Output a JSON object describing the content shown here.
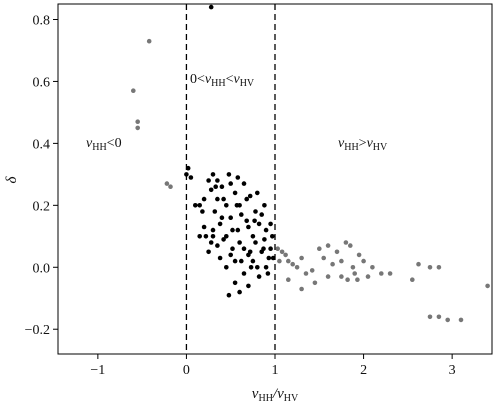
{
  "chart_data": {
    "type": "scatter",
    "title": "",
    "xlabel": {
      "main": "v",
      "sub1": "HH",
      "slash": "/v",
      "sub2": "HV"
    },
    "ylabel": "δ",
    "xlim": [
      -1.45,
      3.45
    ],
    "ylim": [
      -0.28,
      0.85
    ],
    "xticks": [
      -1,
      0,
      1,
      2,
      3
    ],
    "yticks": [
      -0.2,
      0.0,
      0.2,
      0.4,
      0.6,
      0.8
    ],
    "xtick_labels": [
      "−1",
      "0",
      "1",
      "2",
      "3"
    ],
    "ytick_labels": [
      "−0.2",
      "0.0",
      "0.2",
      "0.4",
      "0.6",
      "0.8"
    ],
    "reference_lines": [
      0,
      1
    ],
    "grid": false,
    "annotations": [
      {
        "id": "left",
        "parts": [
          "v",
          "HH",
          "<0"
        ]
      },
      {
        "id": "middle",
        "parts": [
          "0<",
          "v",
          "HH",
          "<",
          "v",
          "HV"
        ]
      },
      {
        "id": "right",
        "parts": [
          "v",
          "HH",
          ">",
          "v",
          "HV"
        ]
      }
    ],
    "series": [
      {
        "color": "#777777",
        "points": [
          [
            -0.42,
            0.73
          ],
          [
            -0.6,
            0.57
          ],
          [
            -0.55,
            0.47
          ],
          [
            -0.55,
            0.45
          ],
          [
            -0.22,
            0.27
          ],
          [
            -0.18,
            0.26
          ],
          [
            1.03,
            0.06
          ],
          [
            1.08,
            0.05
          ],
          [
            1.12,
            0.04
          ],
          [
            1.15,
            0.02
          ],
          [
            1.2,
            0.01
          ],
          [
            1.25,
            0.0
          ],
          [
            1.3,
            0.03
          ],
          [
            1.35,
            -0.02
          ],
          [
            1.42,
            -0.01
          ],
          [
            1.5,
            0.06
          ],
          [
            1.55,
            0.03
          ],
          [
            1.6,
            -0.03
          ],
          [
            1.65,
            0.01
          ],
          [
            1.7,
            0.05
          ],
          [
            1.75,
            -0.03
          ],
          [
            1.8,
            0.08
          ],
          [
            1.82,
            -0.04
          ],
          [
            1.85,
            0.07
          ],
          [
            1.9,
            -0.02
          ],
          [
            1.93,
            -0.04
          ],
          [
            1.95,
            0.04
          ],
          [
            2.0,
            0.02
          ],
          [
            2.05,
            -0.03
          ],
          [
            2.1,
            0.0
          ],
          [
            2.2,
            -0.02
          ],
          [
            2.3,
            -0.02
          ],
          [
            1.6,
            0.07
          ],
          [
            1.45,
            -0.05
          ],
          [
            1.3,
            -0.07
          ],
          [
            1.15,
            -0.04
          ],
          [
            1.05,
            0.02
          ],
          [
            1.75,
            0.02
          ],
          [
            1.88,
            0.0
          ],
          [
            2.55,
            -0.04
          ],
          [
            2.62,
            0.01
          ],
          [
            2.75,
            0.0
          ],
          [
            2.85,
            0.0
          ],
          [
            2.75,
            -0.16
          ],
          [
            2.85,
            -0.16
          ],
          [
            2.95,
            -0.17
          ],
          [
            3.1,
            -0.17
          ],
          [
            3.4,
            -0.06
          ]
        ]
      },
      {
        "color": "#000000",
        "points": [
          [
            0.28,
            0.84
          ],
          [
            0.02,
            0.32
          ],
          [
            0.0,
            0.3
          ],
          [
            0.05,
            0.29
          ],
          [
            0.15,
            0.2
          ],
          [
            0.18,
            0.18
          ],
          [
            0.2,
            0.22
          ],
          [
            0.22,
            0.1
          ],
          [
            0.25,
            0.28
          ],
          [
            0.28,
            0.25
          ],
          [
            0.3,
            0.3
          ],
          [
            0.32,
            0.18
          ],
          [
            0.35,
            0.22
          ],
          [
            0.38,
            0.14
          ],
          [
            0.4,
            0.26
          ],
          [
            0.42,
            0.09
          ],
          [
            0.45,
            0.2
          ],
          [
            0.48,
            0.3
          ],
          [
            0.5,
            0.16
          ],
          [
            0.52,
            0.06
          ],
          [
            0.55,
            0.24
          ],
          [
            0.58,
            0.12
          ],
          [
            0.6,
            0.2
          ],
          [
            0.62,
            0.02
          ],
          [
            0.65,
            0.27
          ],
          [
            0.68,
            0.15
          ],
          [
            0.7,
            0.04
          ],
          [
            0.72,
            0.23
          ],
          [
            0.75,
            0.1
          ],
          [
            0.78,
            0.18
          ],
          [
            0.8,
            0.0
          ],
          [
            0.82,
            0.14
          ],
          [
            0.85,
            0.05
          ],
          [
            0.88,
            0.09
          ],
          [
            0.9,
            0.12
          ],
          [
            0.92,
            -0.02
          ],
          [
            0.95,
            0.06
          ],
          [
            0.98,
            0.03
          ],
          [
            0.1,
            0.2
          ],
          [
            0.25,
            0.05
          ],
          [
            0.3,
            0.12
          ],
          [
            0.35,
            0.28
          ],
          [
            0.45,
            0.1
          ],
          [
            0.5,
            0.27
          ],
          [
            0.55,
            0.02
          ],
          [
            0.6,
            0.08
          ],
          [
            0.65,
            -0.02
          ],
          [
            0.7,
            0.13
          ],
          [
            0.75,
            0.02
          ],
          [
            0.8,
            0.24
          ],
          [
            0.85,
            0.17
          ],
          [
            0.9,
            0.0
          ],
          [
            0.95,
            0.14
          ],
          [
            0.4,
            0.16
          ],
          [
            0.45,
            0.0
          ],
          [
            0.55,
            -0.05
          ],
          [
            0.6,
            -0.08
          ],
          [
            0.7,
            -0.06
          ],
          [
            0.3,
            0.1
          ],
          [
            0.35,
            0.07
          ],
          [
            0.5,
            0.04
          ],
          [
            0.65,
            0.06
          ],
          [
            0.78,
            0.08
          ],
          [
            0.82,
            -0.03
          ],
          [
            0.88,
            0.2
          ],
          [
            0.42,
            0.22
          ],
          [
            0.58,
            0.29
          ],
          [
            0.62,
            0.17
          ],
          [
            0.68,
            0.22
          ],
          [
            0.72,
            0.05
          ],
          [
            0.52,
            0.12
          ],
          [
            0.48,
            -0.09
          ],
          [
            0.38,
            0.03
          ],
          [
            0.2,
            0.13
          ],
          [
            0.15,
            0.1
          ],
          [
            0.28,
            0.08
          ],
          [
            0.33,
            0.26
          ],
          [
            0.57,
            0.2
          ],
          [
            0.77,
            0.15
          ],
          [
            0.93,
            0.03
          ],
          [
            0.97,
            0.1
          ],
          [
            0.87,
            0.06
          ],
          [
            0.73,
            0.0
          ]
        ]
      }
    ]
  }
}
